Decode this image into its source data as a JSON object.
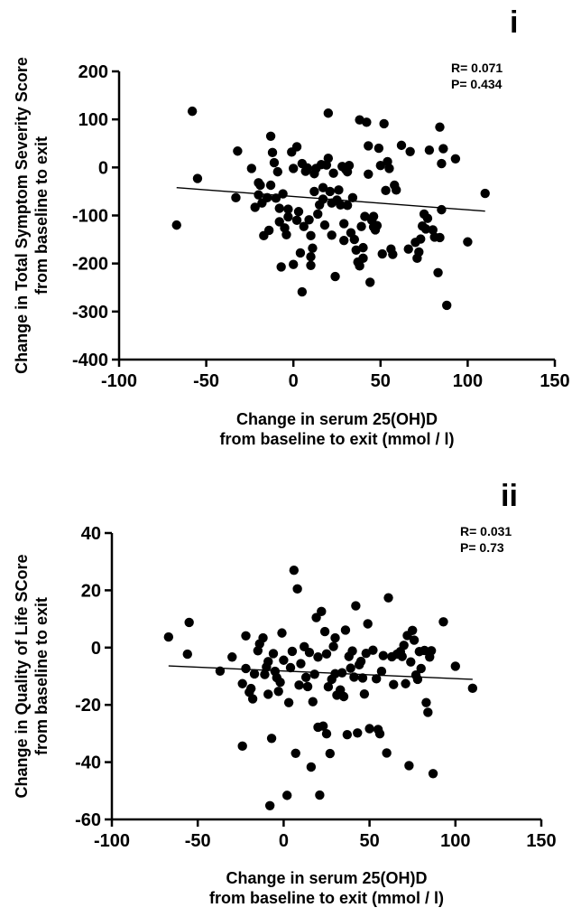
{
  "colors": {
    "points": "#000000",
    "axes": "#000000",
    "background": "#ffffff"
  },
  "chart_data": [
    {
      "type": "scatter",
      "panel_label": "i",
      "xlabel_line1": "Change in serum 25(OH)D",
      "xlabel_line2": "from baseline to exit (mmol / l)",
      "ylabel_line1": "Change in Total Symptom Severity Score",
      "ylabel_line2": "from baseline to exit",
      "stats": {
        "r": "R= 0.071",
        "p": "P=  0.434"
      },
      "xlim": [
        -100,
        150
      ],
      "ylim": [
        -400,
        200
      ],
      "x_ticks": [
        -100,
        -50,
        0,
        50,
        100,
        150
      ],
      "y_ticks": [
        -400,
        -300,
        -200,
        -100,
        0,
        100,
        200
      ],
      "regression_line": {
        "x": [
          -67,
          110
        ],
        "y": [
          -42,
          -91
        ]
      },
      "grid": false,
      "points": [
        [
          -67,
          -120
        ],
        [
          -58,
          117
        ],
        [
          -55,
          -23
        ],
        [
          -33,
          -63
        ],
        [
          -32,
          34
        ],
        [
          -24,
          -2
        ],
        [
          -22,
          -83
        ],
        [
          -20,
          -32
        ],
        [
          -20,
          -57
        ],
        [
          -19,
          -37
        ],
        [
          -18,
          -74
        ],
        [
          -17,
          -142
        ],
        [
          -15,
          -63
        ],
        [
          -14,
          -131
        ],
        [
          -13,
          -37
        ],
        [
          -13,
          65
        ],
        [
          -12,
          31
        ],
        [
          -11,
          10
        ],
        [
          -10,
          -64
        ],
        [
          -9,
          -9
        ],
        [
          -8,
          -85
        ],
        [
          -8,
          -113
        ],
        [
          -7,
          -207
        ],
        [
          -6,
          -55
        ],
        [
          -5,
          -126
        ],
        [
          -4,
          -140
        ],
        [
          -3,
          -103
        ],
        [
          -3,
          -87
        ],
        [
          -1,
          32
        ],
        [
          0,
          -2
        ],
        [
          0,
          -202
        ],
        [
          2,
          -110
        ],
        [
          2,
          43
        ],
        [
          3,
          -92
        ],
        [
          4,
          -178
        ],
        [
          5,
          8
        ],
        [
          5,
          -259
        ],
        [
          6,
          -123
        ],
        [
          7,
          -8
        ],
        [
          8,
          -1
        ],
        [
          9,
          -109
        ],
        [
          10,
          -186
        ],
        [
          10,
          -142
        ],
        [
          10,
          -204
        ],
        [
          11,
          -168
        ],
        [
          12,
          -13
        ],
        [
          12,
          -50
        ],
        [
          13,
          -2
        ],
        [
          14,
          -97
        ],
        [
          15,
          -78
        ],
        [
          16,
          6
        ],
        [
          17,
          -66
        ],
        [
          17,
          -42
        ],
        [
          18,
          -120
        ],
        [
          19,
          5
        ],
        [
          20,
          113
        ],
        [
          20,
          19
        ],
        [
          21,
          -50
        ],
        [
          22,
          -74
        ],
        [
          22,
          -141
        ],
        [
          23,
          -12
        ],
        [
          24,
          -227
        ],
        [
          25,
          -68
        ],
        [
          26,
          -47
        ],
        [
          27,
          -78
        ],
        [
          28,
          2
        ],
        [
          29,
          -152
        ],
        [
          29,
          -117
        ],
        [
          30,
          -4
        ],
        [
          31,
          -9
        ],
        [
          31,
          -79
        ],
        [
          32,
          4
        ],
        [
          33,
          -136
        ],
        [
          34,
          -63
        ],
        [
          35,
          -150
        ],
        [
          36,
          -172
        ],
        [
          37,
          -197
        ],
        [
          38,
          -205
        ],
        [
          38,
          99
        ],
        [
          39,
          -123
        ],
        [
          40,
          -167
        ],
        [
          40,
          -189
        ],
        [
          41,
          -102
        ],
        [
          42,
          94
        ],
        [
          43,
          45
        ],
        [
          43,
          -14
        ],
        [
          44,
          -239
        ],
        [
          45,
          -110
        ],
        [
          46,
          -102
        ],
        [
          46,
          -124
        ],
        [
          47,
          -130
        ],
        [
          48,
          -121
        ],
        [
          49,
          40
        ],
        [
          50,
          4
        ],
        [
          51,
          -180
        ],
        [
          52,
          91
        ],
        [
          53,
          -48
        ],
        [
          54,
          12
        ],
        [
          55,
          -2
        ],
        [
          56,
          -170
        ],
        [
          57,
          -181
        ],
        [
          58,
          -37
        ],
        [
          59,
          -47
        ],
        [
          62,
          46
        ],
        [
          66,
          -170
        ],
        [
          67,
          33
        ],
        [
          70,
          -156
        ],
        [
          71,
          -189
        ],
        [
          72,
          -176
        ],
        [
          73,
          -149
        ],
        [
          74,
          -122
        ],
        [
          75,
          -97
        ],
        [
          76,
          -128
        ],
        [
          77,
          -106
        ],
        [
          78,
          36
        ],
        [
          80,
          -130
        ],
        [
          81,
          -145
        ],
        [
          83,
          -219
        ],
        [
          84,
          -146
        ],
        [
          84,
          84
        ],
        [
          85,
          8
        ],
        [
          85,
          -88
        ],
        [
          86,
          39
        ],
        [
          88,
          -287
        ],
        [
          93,
          18
        ],
        [
          100,
          -155
        ],
        [
          110,
          -54
        ]
      ]
    },
    {
      "type": "scatter",
      "panel_label": "ii",
      "xlabel_line1": "Change in serum 25(OH)D",
      "xlabel_line2": "from baseline to exit (mmol / l)",
      "ylabel_line1": "Change in Quality of Life SCore",
      "ylabel_line2": "from baseline to exit",
      "stats": {
        "r": "R= 0.031",
        "p": "P=  0.73"
      },
      "xlim": [
        -100,
        150
      ],
      "ylim": [
        -60,
        40
      ],
      "x_ticks": [
        -100,
        -50,
        0,
        50,
        100,
        150
      ],
      "y_ticks": [
        -60,
        -40,
        -20,
        0,
        20,
        40
      ],
      "regression_line": {
        "x": [
          -67,
          110
        ],
        "y": [
          -6.4,
          -11.1
        ]
      },
      "grid": false,
      "points": [
        [
          -67,
          3.7
        ],
        [
          -55,
          8.8
        ],
        [
          -56,
          -2.3
        ],
        [
          -37,
          -8.2
        ],
        [
          -30,
          -3.3
        ],
        [
          -24,
          -34.4
        ],
        [
          -24,
          -12.6
        ],
        [
          -22,
          4.1
        ],
        [
          -22,
          -7.3
        ],
        [
          -20,
          -15.6
        ],
        [
          -19,
          -14.3
        ],
        [
          -18,
          -17.9
        ],
        [
          -17,
          -9.2
        ],
        [
          -15,
          -1.1
        ],
        [
          -14,
          1.3
        ],
        [
          -12,
          3.4
        ],
        [
          -11,
          -9.4
        ],
        [
          -10,
          -6.8
        ],
        [
          -9,
          -4.9
        ],
        [
          -9,
          -16.3
        ],
        [
          -8,
          -55.2
        ],
        [
          -7,
          -31.7
        ],
        [
          -6,
          -2.1
        ],
        [
          -5,
          -8.3
        ],
        [
          -4,
          -10.5
        ],
        [
          -3,
          -15.3
        ],
        [
          -2,
          -12.1
        ],
        [
          -1,
          5.1
        ],
        [
          0,
          -4.4
        ],
        [
          2,
          -51.6
        ],
        [
          3,
          -19.2
        ],
        [
          4,
          -7.0
        ],
        [
          5,
          -1.3
        ],
        [
          6,
          27.0
        ],
        [
          7,
          -36.9
        ],
        [
          8,
          20.5
        ],
        [
          9,
          -13.1
        ],
        [
          10,
          -5.6
        ],
        [
          12,
          0.3
        ],
        [
          13,
          -10.4
        ],
        [
          14,
          -13.6
        ],
        [
          15,
          -1.7
        ],
        [
          16,
          -41.7
        ],
        [
          17,
          -18.9
        ],
        [
          18,
          -9.3
        ],
        [
          19,
          10.5
        ],
        [
          20,
          -3.3
        ],
        [
          20,
          -27.8
        ],
        [
          21,
          -51.5
        ],
        [
          22,
          12.6
        ],
        [
          23,
          -27.4
        ],
        [
          24,
          5.6
        ],
        [
          25,
          -2.2
        ],
        [
          25,
          -30.1
        ],
        [
          26,
          -13.7
        ],
        [
          27,
          -37.0
        ],
        [
          28,
          -11.1
        ],
        [
          29,
          0.4
        ],
        [
          30,
          3.4
        ],
        [
          30,
          -9.1
        ],
        [
          31,
          -16.6
        ],
        [
          33,
          -14.8
        ],
        [
          34,
          -8.8
        ],
        [
          35,
          -17.1
        ],
        [
          36,
          6.1
        ],
        [
          37,
          -30.4
        ],
        [
          38,
          -3.1
        ],
        [
          39,
          -7.2
        ],
        [
          40,
          -1.2
        ],
        [
          41,
          -10.3
        ],
        [
          42,
          14.6
        ],
        [
          43,
          -29.8
        ],
        [
          44,
          -6.0
        ],
        [
          45,
          -4.8
        ],
        [
          46,
          -10.6
        ],
        [
          47,
          -16.2
        ],
        [
          48,
          -2.0
        ],
        [
          49,
          8.3
        ],
        [
          50,
          -28.3
        ],
        [
          52,
          -0.9
        ],
        [
          54,
          -10.9
        ],
        [
          55,
          -28.6
        ],
        [
          56,
          -30.1
        ],
        [
          57,
          -8.3
        ],
        [
          58,
          -2.8
        ],
        [
          60,
          -36.8
        ],
        [
          61,
          17.4
        ],
        [
          63,
          -3.2
        ],
        [
          64,
          -12.9
        ],
        [
          66,
          -2.3
        ],
        [
          68,
          -1.4
        ],
        [
          69,
          -3.1
        ],
        [
          70,
          0.8
        ],
        [
          71,
          -12.6
        ],
        [
          72,
          4.2
        ],
        [
          73,
          -41.2
        ],
        [
          74,
          -5.0
        ],
        [
          75,
          6.0
        ],
        [
          76,
          2.6
        ],
        [
          77,
          -9.6
        ],
        [
          78,
          -11.1
        ],
        [
          79,
          -1.4
        ],
        [
          80,
          -7.3
        ],
        [
          82,
          -1.0
        ],
        [
          83,
          -19.2
        ],
        [
          84,
          -22.6
        ],
        [
          85,
          -3.3
        ],
        [
          86,
          -1.1
        ],
        [
          87,
          -44.0
        ],
        [
          93,
          9.0
        ],
        [
          100,
          -6.5
        ],
        [
          110,
          -14.2
        ]
      ]
    }
  ]
}
